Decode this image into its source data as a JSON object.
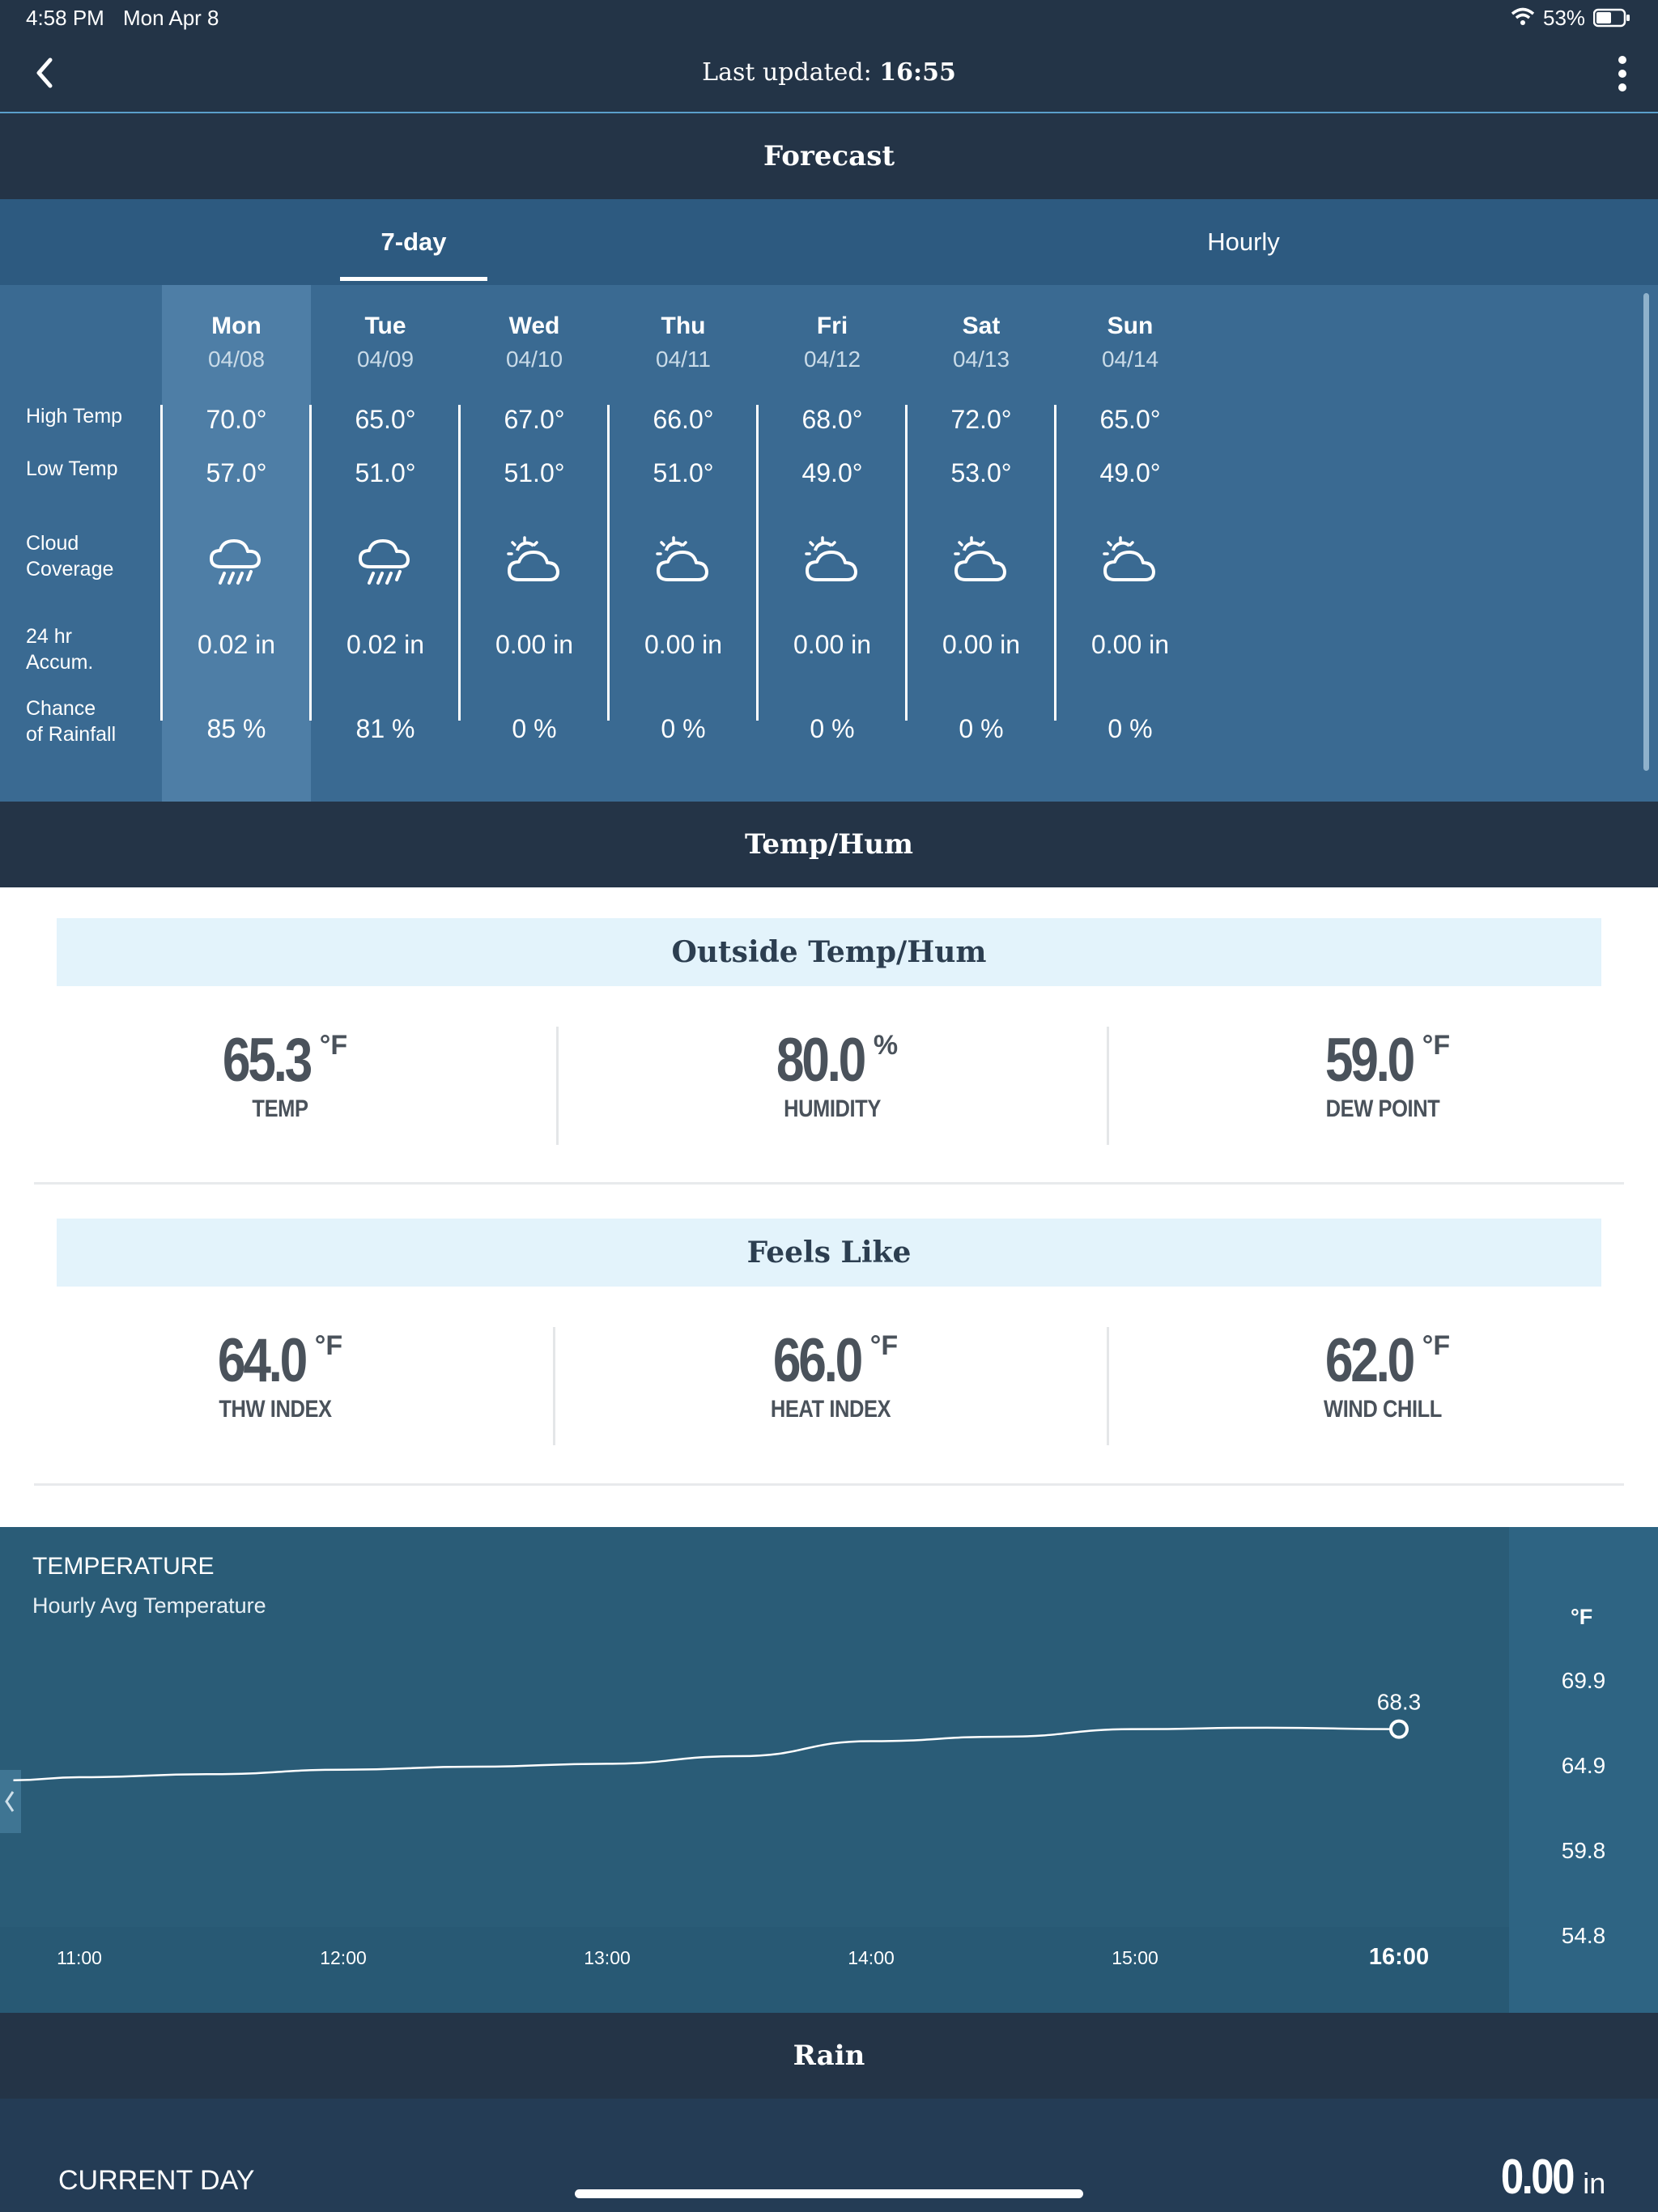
{
  "status_bar": {
    "time": "4:58 PM",
    "date": "Mon Apr 8",
    "battery": "53%"
  },
  "nav": {
    "last_updated_label": "Last updated:",
    "last_updated_time": "16:55"
  },
  "forecast": {
    "section_title": "Forecast",
    "tabs": [
      {
        "label": "7-day",
        "active": true
      },
      {
        "label": "Hourly",
        "active": false
      }
    ],
    "row_labels": {
      "high": "High Temp",
      "low": "Low Temp",
      "cloud_1": "Cloud",
      "cloud_2": "Coverage",
      "accum_1": "24 hr",
      "accum_2": "Accum.",
      "rain_1": "Chance",
      "rain_2": "of Rainfall"
    },
    "days": [
      {
        "day": "Mon",
        "date": "04/08",
        "high": "70.0°",
        "low": "57.0°",
        "icon": "rain-cloud-icon",
        "accum": "0.02 in",
        "chance": "85 %"
      },
      {
        "day": "Tue",
        "date": "04/09",
        "high": "65.0°",
        "low": "51.0°",
        "icon": "rain-cloud-icon",
        "accum": "0.02 in",
        "chance": "81 %"
      },
      {
        "day": "Wed",
        "date": "04/10",
        "high": "67.0°",
        "low": "51.0°",
        "icon": "partly-cloudy-icon",
        "accum": "0.00 in",
        "chance": "0 %"
      },
      {
        "day": "Thu",
        "date": "04/11",
        "high": "66.0°",
        "low": "51.0°",
        "icon": "partly-cloudy-icon",
        "accum": "0.00 in",
        "chance": "0 %"
      },
      {
        "day": "Fri",
        "date": "04/12",
        "high": "68.0°",
        "low": "49.0°",
        "icon": "partly-cloudy-icon",
        "accum": "0.00 in",
        "chance": "0 %"
      },
      {
        "day": "Sat",
        "date": "04/13",
        "high": "72.0°",
        "low": "53.0°",
        "icon": "partly-cloudy-icon",
        "accum": "0.00 in",
        "chance": "0 %"
      },
      {
        "day": "Sun",
        "date": "04/14",
        "high": "65.0°",
        "low": "49.0°",
        "icon": "partly-cloudy-icon",
        "accum": "0.00 in",
        "chance": "0 %"
      }
    ]
  },
  "temp_hum": {
    "section_title": "Temp/Hum",
    "outside": {
      "title": "Outside Temp/Hum",
      "metrics": [
        {
          "value": "65.3",
          "unit": "°F",
          "label": "TEMP"
        },
        {
          "value": "80.0",
          "unit": "%",
          "label": "HUMIDITY"
        },
        {
          "value": "59.0",
          "unit": "°F",
          "label": "DEW POINT"
        }
      ]
    },
    "feels_like": {
      "title": "Feels Like",
      "metrics": [
        {
          "value": "64.0",
          "unit": "°F",
          "label": "THW INDEX"
        },
        {
          "value": "66.0",
          "unit": "°F",
          "label": "HEAT INDEX"
        },
        {
          "value": "62.0",
          "unit": "°F",
          "label": "WIND CHILL"
        }
      ]
    }
  },
  "temperature_chart": {
    "title": "TEMPERATURE",
    "subtitle": "Hourly Avg Temperature",
    "unit_label": "°F",
    "last_value_label": "68.3"
  },
  "chart_data": {
    "type": "line",
    "title": "TEMPERATURE",
    "subtitle": "Hourly Avg Temperature",
    "ylabel": "°F",
    "x": [
      "10:45",
      "11:00",
      "11:30",
      "12:00",
      "12:30",
      "13:00",
      "13:30",
      "14:00",
      "14:30",
      "15:00",
      "15:30",
      "16:00"
    ],
    "y": [
      64.9,
      65.1,
      65.3,
      65.6,
      65.8,
      66.0,
      66.5,
      67.5,
      67.8,
      68.3,
      68.4,
      68.3
    ],
    "xticks": [
      "11:00",
      "12:00",
      "13:00",
      "14:00",
      "15:00",
      "16:00"
    ],
    "yticks": [
      "69.9",
      "64.9",
      "59.8",
      "54.8"
    ],
    "ylim": [
      54.8,
      69.9
    ],
    "annotations": [
      {
        "x": "16:00",
        "y": 68.3,
        "text": "68.3"
      }
    ]
  },
  "rain": {
    "section_title": "Rain",
    "current_day_label": "CURRENT DAY",
    "current_day_value": "0.00",
    "current_day_unit": "in"
  }
}
